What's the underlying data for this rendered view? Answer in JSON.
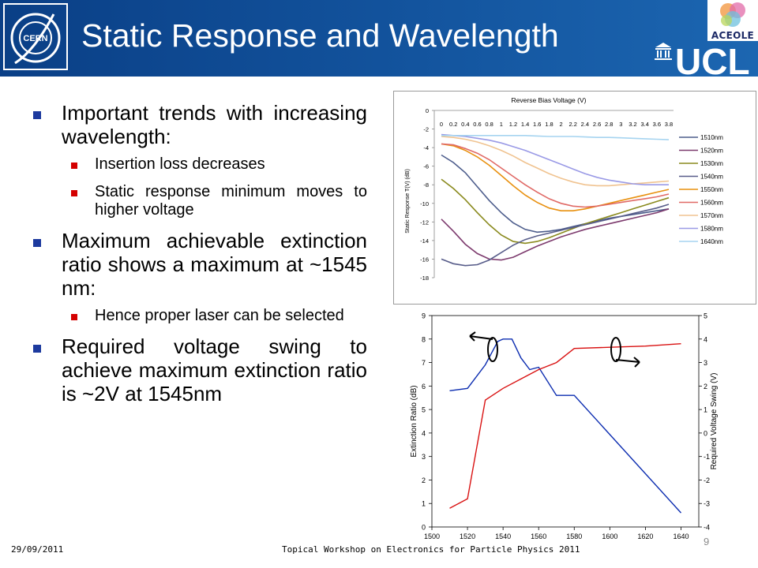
{
  "slide": {
    "title": "Static Response and Wavelength",
    "logos": {
      "cern": "CERN",
      "aceole": "ACEOLE",
      "ucl": "UCL"
    },
    "bullets": [
      {
        "text": "Important trends with increasing wavelength:",
        "subs": [
          "Insertion loss decreases",
          "Static response minimum moves to higher voltage"
        ]
      },
      {
        "text": "Maximum achievable extinction ratio shows a maximum at ~1545 nm:",
        "subs": [
          "Hence proper laser can be selected"
        ]
      },
      {
        "text": "Required voltage swing to achieve maximum extinction ratio is ~2V at 1545nm",
        "subs": []
      }
    ],
    "footer": {
      "date": "29/09/2011",
      "event": "Topical Workshop on Electronics for Particle Physics 2011",
      "page": "9"
    },
    "colors": {
      "header": "#13549e",
      "bullet_l1": "#1d3a9e",
      "bullet_l2": "#d40000"
    }
  },
  "chart_data": [
    {
      "type": "line",
      "title": "Reverse Bias Voltage (V)",
      "xlabel": "",
      "ylabel": "Static Response T(V) (dB)",
      "x": [
        0,
        0.2,
        0.4,
        0.6,
        0.8,
        1,
        1.2,
        1.4,
        1.6,
        1.8,
        2,
        2.2,
        2.4,
        2.6,
        2.8,
        3,
        3.2,
        3.4,
        3.6,
        3.8
      ],
      "x_tick_labels": [
        "0",
        "0.2",
        "0.4",
        "0.6",
        "0.8",
        "1",
        "1.2",
        "1.4",
        "1.6",
        "1.8",
        "2",
        "2.2",
        "2.4",
        "2.6",
        "2.8",
        "3",
        "3.2",
        "3.4",
        "3.6",
        "3.8"
      ],
      "xlim": [
        0,
        3.8
      ],
      "ylim": [
        -18,
        0
      ],
      "y_ticks": [
        0,
        -2,
        -4,
        -6,
        -8,
        -10,
        -12,
        -14,
        -16,
        -18
      ],
      "grid": false,
      "legend_position": "right",
      "series": [
        {
          "name": "1510nm",
          "color": "#4d5d8c",
          "values": [
            -4.8,
            -5.6,
            -6.7,
            -8.2,
            -9.7,
            -11.0,
            -12.1,
            -12.8,
            -13.1,
            -13.0,
            -12.8,
            -12.5,
            -12.2,
            -11.9,
            -11.6,
            -11.4,
            -11.2,
            -11.0,
            -10.8,
            -10.6
          ]
        },
        {
          "name": "1520nm",
          "color": "#7d3b6e",
          "values": [
            -11.7,
            -13.0,
            -14.4,
            -15.4,
            -16.0,
            -16.1,
            -15.8,
            -15.2,
            -14.6,
            -14.1,
            -13.6,
            -13.2,
            -12.8,
            -12.5,
            -12.2,
            -11.9,
            -11.6,
            -11.3,
            -11.0,
            -10.6
          ]
        },
        {
          "name": "1530nm",
          "color": "#8a8a1e",
          "values": [
            -7.4,
            -8.4,
            -9.6,
            -11.0,
            -12.3,
            -13.4,
            -14.1,
            -14.3,
            -14.1,
            -13.7,
            -13.2,
            -12.7,
            -12.2,
            -11.8,
            -11.4,
            -11.0,
            -10.6,
            -10.2,
            -9.8,
            -9.4
          ]
        },
        {
          "name": "1540nm",
          "color": "#585d8a",
          "values": [
            -16.0,
            -16.5,
            -16.7,
            -16.6,
            -16.1,
            -15.3,
            -14.5,
            -13.9,
            -13.5,
            -13.2,
            -12.9,
            -12.6,
            -12.3,
            -12.0,
            -11.7,
            -11.4,
            -11.1,
            -10.8,
            -10.5,
            -10.1
          ]
        },
        {
          "name": "1550nm",
          "color": "#e8900f",
          "values": [
            -3.6,
            -3.8,
            -4.3,
            -5.0,
            -5.9,
            -7.0,
            -8.1,
            -9.1,
            -9.9,
            -10.5,
            -10.8,
            -10.8,
            -10.6,
            -10.3,
            -10.0,
            -9.7,
            -9.4,
            -9.1,
            -8.8,
            -8.5
          ]
        },
        {
          "name": "1560nm",
          "color": "#e06a66",
          "values": [
            -3.6,
            -3.7,
            -4.1,
            -4.6,
            -5.3,
            -6.2,
            -7.1,
            -8.0,
            -8.8,
            -9.5,
            -10.0,
            -10.3,
            -10.4,
            -10.3,
            -10.1,
            -9.9,
            -9.7,
            -9.5,
            -9.3,
            -9.0
          ]
        },
        {
          "name": "1570nm",
          "color": "#f0c390",
          "values": [
            -2.8,
            -2.9,
            -3.1,
            -3.4,
            -3.8,
            -4.3,
            -4.9,
            -5.6,
            -6.2,
            -6.8,
            -7.3,
            -7.7,
            -8.0,
            -8.1,
            -8.1,
            -8.0,
            -7.9,
            -7.8,
            -7.7,
            -7.6
          ]
        },
        {
          "name": "1580nm",
          "color": "#9a9ae6",
          "values": [
            -2.6,
            -2.7,
            -2.8,
            -3.0,
            -3.2,
            -3.5,
            -3.9,
            -4.3,
            -4.8,
            -5.3,
            -5.8,
            -6.3,
            -6.8,
            -7.2,
            -7.5,
            -7.7,
            -7.9,
            -8.0,
            -8.0,
            -8.0
          ]
        },
        {
          "name": "1640nm",
          "color": "#a6d4f0",
          "values": [
            -2.7,
            -2.7,
            -2.7,
            -2.7,
            -2.7,
            -2.7,
            -2.7,
            -2.7,
            -2.75,
            -2.8,
            -2.8,
            -2.8,
            -2.85,
            -2.9,
            -2.9,
            -2.95,
            -3.0,
            -3.05,
            -3.1,
            -3.15
          ]
        }
      ]
    },
    {
      "type": "line",
      "title": "",
      "xlabel": "",
      "ylabel": "Extinction Ratio (dB)",
      "y2label": "Required Voltage Swing (V)",
      "xlim": [
        1500,
        1650
      ],
      "ylim": [
        0,
        9
      ],
      "y2lim": [
        -4,
        5
      ],
      "x_ticks": [
        1500,
        1520,
        1540,
        1560,
        1580,
        1600,
        1620,
        1640
      ],
      "y_ticks": [
        0,
        1,
        2,
        3,
        4,
        5,
        6,
        7,
        8,
        9
      ],
      "y2_ticks": [
        5,
        4,
        3,
        2,
        1,
        0,
        -1,
        -2,
        -3,
        -4
      ],
      "grid": false,
      "legend_position": "none",
      "series": [
        {
          "name": "",
          "axis": "left",
          "color": "#0b2cb0",
          "x": [
            1510,
            1520,
            1530,
            1537,
            1540,
            1545,
            1550,
            1555,
            1560,
            1570,
            1580,
            1640
          ],
          "values": [
            5.8,
            5.9,
            6.9,
            7.9,
            8.0,
            8.0,
            7.2,
            6.7,
            6.8,
            5.6,
            5.6,
            0.6
          ]
        },
        {
          "name": "",
          "axis": "right",
          "color": "#d91212",
          "x": [
            1510,
            1520,
            1530,
            1540,
            1550,
            1560,
            1570,
            1580,
            1600,
            1620,
            1640
          ],
          "values": [
            -3.2,
            -2.8,
            1.4,
            1.9,
            2.3,
            2.7,
            3.0,
            3.6,
            3.65,
            3.7,
            3.8
          ]
        }
      ]
    }
  ]
}
